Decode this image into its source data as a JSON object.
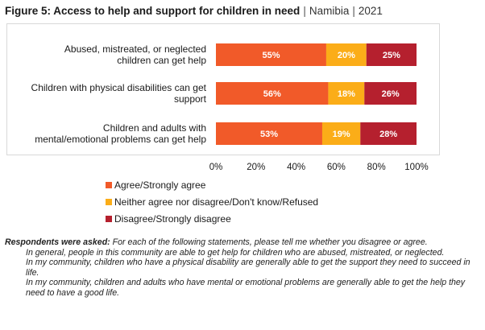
{
  "figure": {
    "title": "Figure 5: Access to help and support for children in need",
    "separator": "|",
    "country": "Namibia",
    "year": "2021"
  },
  "chart_data": {
    "type": "bar",
    "orientation": "horizontal",
    "stacked": true,
    "categories": [
      [
        "Abused, mistreated, or neglected",
        "children can get help"
      ],
      [
        "Children with physical disabilities can get",
        "support"
      ],
      [
        "Children and adults with",
        "mental/emotional problems can get help"
      ]
    ],
    "series": [
      {
        "name": "Agree/Strongly agree",
        "color": "#f15a29",
        "values": [
          55,
          56,
          53
        ]
      },
      {
        "name": "Neither agree nor disagree/Don't know/Refused",
        "color": "#fbad18",
        "values": [
          20,
          18,
          19
        ]
      },
      {
        "name": "Disagree/Strongly disagree",
        "color": "#b5202e",
        "values": [
          25,
          26,
          28
        ]
      }
    ],
    "value_suffix": "%",
    "xlim": [
      0,
      100
    ],
    "xticks": [
      "0%",
      "20%",
      "40%",
      "60%",
      "80%",
      "100%"
    ],
    "legend_position": "bottom-left"
  },
  "notes": {
    "lead": "Respondents were asked:",
    "question": "For each of the following statements, please tell me whether you disagree or agree.",
    "statements": [
      "In general, people in this community are able to get help for children who are abused, mistreated, or neglected.",
      "In my community, children who have a physical disability are generally able to get the support they need to succeed in life.",
      "In my community, children and adults who have mental or emotional problems are generally able to get the help they need to have a good life."
    ]
  }
}
